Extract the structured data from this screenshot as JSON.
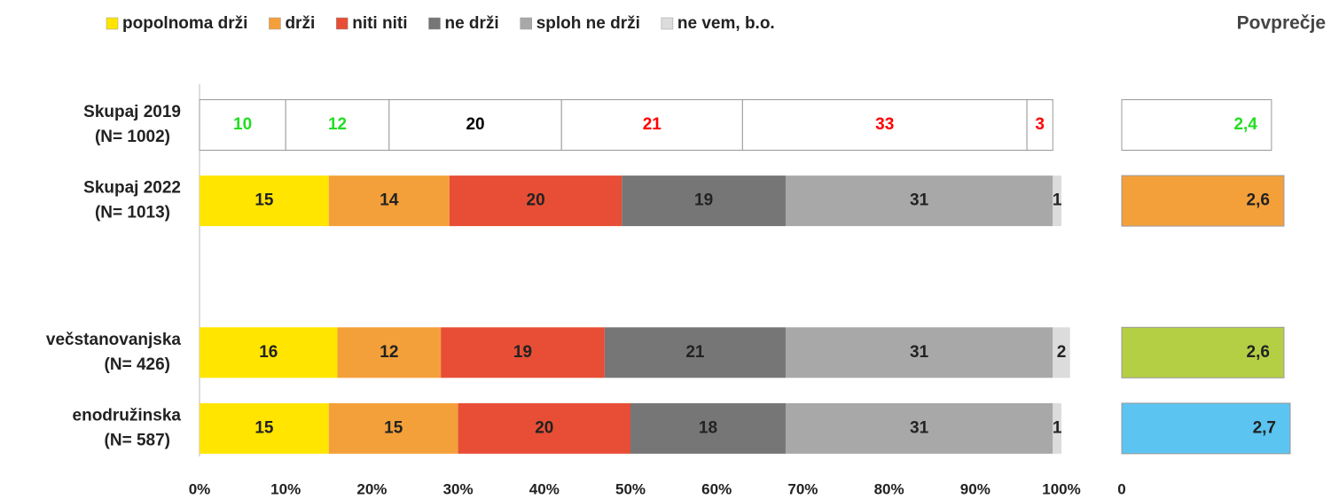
{
  "chart_data": [
    {
      "type": "stacked-bar-horizontal",
      "categories": [
        [
          "Skupaj 2019",
          "(N= 1002)"
        ],
        [
          "Skupaj 2022",
          "(N= 1013)"
        ],
        null,
        [
          "večstanovanjska",
          "(N= 426)"
        ],
        [
          "enodružinska",
          "(N= 587)"
        ]
      ],
      "series": [
        {
          "name": "popolnoma drži",
          "color": "#ffe500",
          "outlined_label_color": "#22dd22",
          "values": [
            10,
            15,
            null,
            16,
            15
          ]
        },
        {
          "name": "drži",
          "color": "#f4a03a",
          "outlined_label_color": "#22dd22",
          "values": [
            12,
            14,
            null,
            12,
            15
          ]
        },
        {
          "name": "niti niti",
          "color": "#e84e36",
          "outlined_label_color": "#000000",
          "values": [
            20,
            20,
            null,
            19,
            20
          ]
        },
        {
          "name": "ne drži",
          "color": "#767676",
          "outlined_label_color": "#ff0000",
          "values": [
            21,
            19,
            null,
            21,
            18
          ]
        },
        {
          "name": "sploh ne drži",
          "color": "#a8a8a8",
          "outlined_label_color": "#ff0000",
          "values": [
            33,
            31,
            null,
            31,
            31
          ]
        },
        {
          "name": "ne vem, b.o.",
          "color": "#dcdcdc",
          "outlined_label_color": "#ff0000",
          "values": [
            3,
            1,
            null,
            2,
            1
          ]
        }
      ],
      "outlined_rows": [
        0
      ],
      "xlim": [
        0,
        100
      ],
      "xticks": [
        {
          "value": 0,
          "label": "0%"
        },
        {
          "value": 10,
          "label": "10%"
        },
        {
          "value": 20,
          "label": "20%"
        },
        {
          "value": 30,
          "label": "30%"
        },
        {
          "value": 40,
          "label": "40%"
        },
        {
          "value": 50,
          "label": "50%"
        },
        {
          "value": 60,
          "label": "60%"
        },
        {
          "value": 70,
          "label": "70%"
        },
        {
          "value": 80,
          "label": "80%"
        },
        {
          "value": 90,
          "label": "90%"
        },
        {
          "value": 100,
          "label": "100%"
        }
      ],
      "legend": "top"
    },
    {
      "type": "bar-horizontal",
      "title": "Povprečje",
      "values": [
        2.4,
        2.6,
        null,
        2.6,
        2.7
      ],
      "value_labels": [
        "2,4",
        "2,6",
        null,
        "2,6",
        "2,7"
      ],
      "colors": [
        "#ffffff",
        "#f4a03a",
        null,
        "#b5cf45",
        "#5bc4f0"
      ],
      "label_colors": [
        "#22dd22",
        "#222222",
        null,
        "#222222",
        "#222222"
      ],
      "xlim": [
        0,
        2.7
      ],
      "xticks": [
        0
      ]
    }
  ]
}
